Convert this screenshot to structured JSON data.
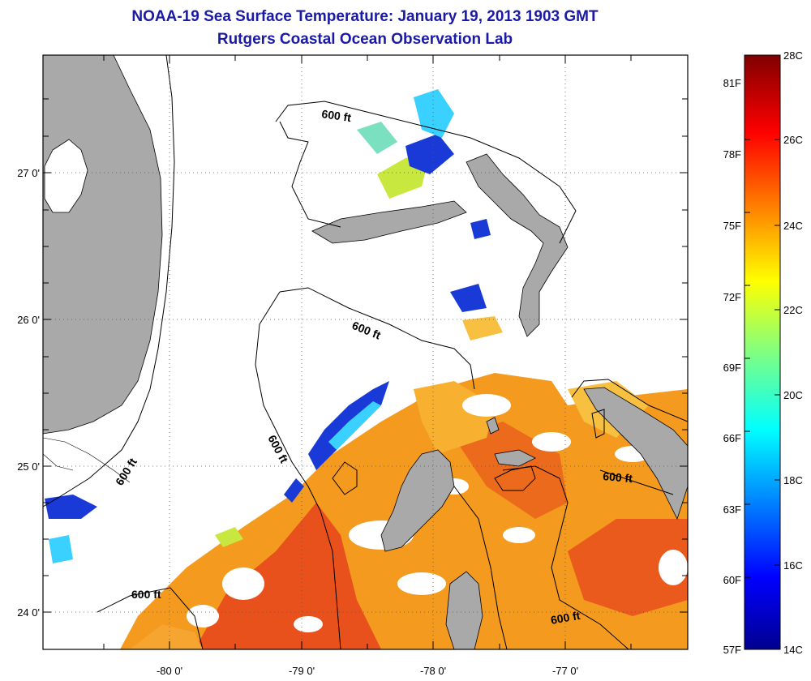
{
  "title": "NOAA-19 Sea Surface Temperature:  January 19, 2013 1903 GMT",
  "subtitle": "Rutgers Coastal Ocean Observation Lab",
  "map": {
    "lat_labels": [
      {
        "text": "27 0'",
        "value": 27
      },
      {
        "text": "26 0'",
        "value": 26
      },
      {
        "text": "25 0'",
        "value": 25
      },
      {
        "text": "24 0'",
        "value": 24
      }
    ],
    "lon_labels": [
      {
        "text": "-80 0'",
        "value": -80
      },
      {
        "text": "-79 0'",
        "value": -79
      },
      {
        "text": "-78 0'",
        "value": -78
      },
      {
        "text": "-77 0'",
        "value": -77
      }
    ],
    "contour_labels": [
      "600 ft",
      "600 ft",
      "600 ft",
      "600 ft",
      "600 ft",
      "600 ft"
    ],
    "land_color": "#a9a9a9",
    "grid": "dotted"
  },
  "colorbar": {
    "celsius": [
      "28C",
      "26C",
      "24C",
      "22C",
      "20C",
      "18C",
      "16C",
      "14C"
    ],
    "fahrenheit": [
      "81F",
      "78F",
      "75F",
      "72F",
      "69F",
      "66F",
      "63F",
      "60F",
      "57F"
    ],
    "min_c": 14,
    "max_c": 28,
    "colormap": "jet"
  }
}
